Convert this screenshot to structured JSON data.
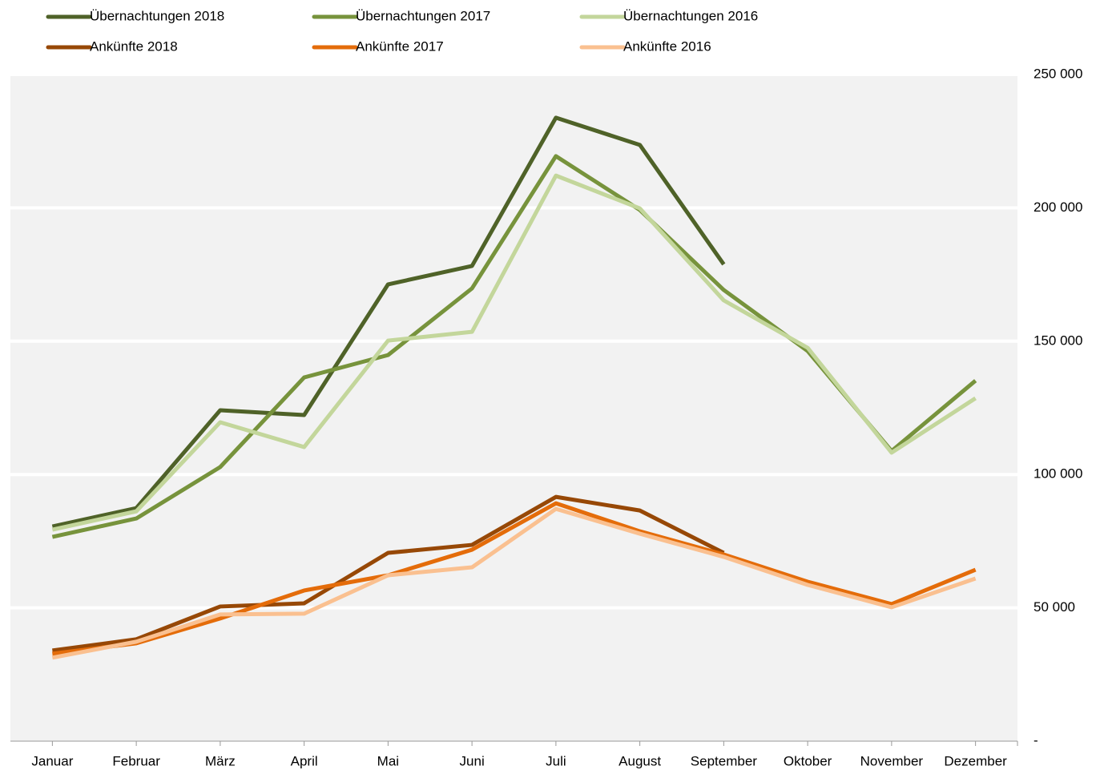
{
  "chart_data": {
    "type": "line",
    "categories": [
      "Januar",
      "Februar",
      "März",
      "April",
      "Mai",
      "Juni",
      "Juli",
      "August",
      "September",
      "Oktober",
      "November",
      "Dezember"
    ],
    "series": [
      {
        "name": "Übernachtungen 2018",
        "color": "#4f6228",
        "values": [
          80500,
          87400,
          124100,
          122300,
          171300,
          178200,
          233800,
          223600,
          178800,
          null,
          null,
          null
        ]
      },
      {
        "name": "Übernachtungen 2017",
        "color": "#77933c",
        "values": [
          76600,
          83500,
          102800,
          136400,
          144800,
          169800,
          219400,
          199200,
          169200,
          146300,
          108800,
          135200
        ]
      },
      {
        "name": "Übernachtungen 2016",
        "color": "#c3d69b",
        "values": [
          79300,
          86200,
          119600,
          110300,
          150200,
          153500,
          212100,
          199800,
          165300,
          147500,
          108200,
          128600
        ]
      },
      {
        "name": "Ankünfte 2018",
        "color": "#974806",
        "values": [
          34000,
          38200,
          50500,
          51700,
          70600,
          73600,
          91600,
          86500,
          70600,
          null,
          null,
          null
        ]
      },
      {
        "name": "Ankünfte 2017",
        "color": "#e46c0a",
        "values": [
          32800,
          36700,
          46000,
          56500,
          62200,
          71800,
          89200,
          78700,
          70000,
          59800,
          51400,
          64300
        ]
      },
      {
        "name": "Ankünfte 2016",
        "color": "#fac090",
        "values": [
          31300,
          37300,
          47500,
          47800,
          62200,
          65200,
          87100,
          77800,
          69100,
          58600,
          50200,
          61000
        ]
      }
    ],
    "ylim": [
      0,
      250000
    ],
    "yticks": [
      {
        "value": 0,
        "label": "-"
      },
      {
        "value": 50000,
        "label": "50 000"
      },
      {
        "value": 100000,
        "label": "100 000"
      },
      {
        "value": 150000,
        "label": "150 000"
      },
      {
        "value": 200000,
        "label": "200 000"
      },
      {
        "value": 250000,
        "label": "250 000"
      }
    ],
    "grid": true,
    "legend": "top"
  }
}
